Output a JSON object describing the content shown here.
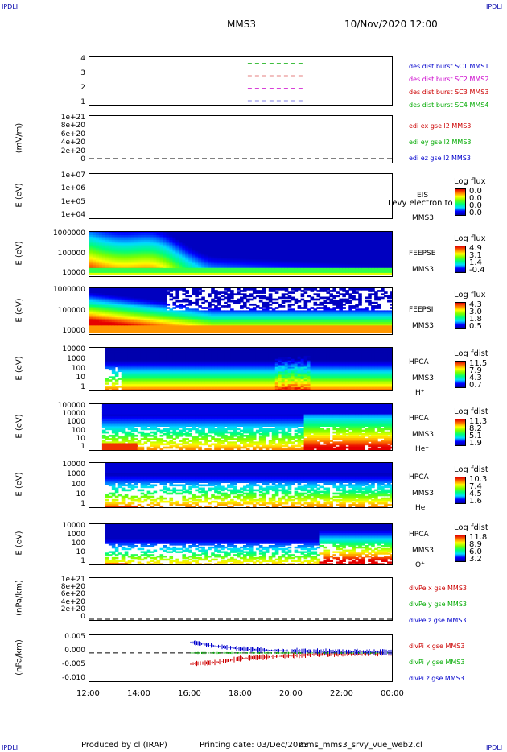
{
  "header": {
    "corner_tl": "IPDLI",
    "corner_tr": "IPDLI",
    "corner_bl": "IPDLI",
    "corner_br": "IPDLI",
    "spacecraft": "MMS3",
    "datetime": "10/Nov/2020 12:00"
  },
  "footer": {
    "produced": "Produced by cl (IRAP)",
    "printing": "Printing date: 03/Dec/2023",
    "file": "mms_mms3_srvy_vue_web2.cl"
  },
  "xaxis": {
    "ticks": [
      "12:00",
      "14:00",
      "16:00",
      "18:00",
      "20:00",
      "22:00",
      "00:00"
    ]
  },
  "panels": {
    "burst": {
      "yticks": [
        "4",
        "3",
        "2",
        "1"
      ],
      "legend": [
        {
          "text": "des dist burst SC1 MMS1",
          "color": "#0000cc"
        },
        {
          "text": "des dist burst SC2 MMS2",
          "color": "#cc00cc"
        },
        {
          "text": "des dist burst SC3 MMS3",
          "color": "#cc0000"
        },
        {
          "text": "des dist burst SC4 MMS4",
          "color": "#00aa00"
        }
      ]
    },
    "edi": {
      "ylabel": "(mV/m)",
      "yticks": [
        "1e+21",
        "8e+20",
        "6e+20",
        "4e+20",
        "2e+20",
        "0"
      ],
      "legend": [
        {
          "text": "edi ex gse l2 MMS3",
          "color": "#cc0000"
        },
        {
          "text": "edi ey gse l2 MMS3",
          "color": "#00aa00"
        },
        {
          "text": "edi ez gse l2 MMS3",
          "color": "#0000cc"
        }
      ]
    },
    "eis": {
      "ylabel": "E (eV)",
      "yticks": [
        "1e+07",
        "1e+06",
        "1e+05",
        "1e+04"
      ],
      "name": "EIS",
      "sc": "MMS3",
      "overlap": "Levy electron to",
      "cb_title": "Log flux",
      "cb_vals": [
        "0.0",
        "0.0",
        "0.0",
        "0.0"
      ]
    },
    "feepse": {
      "ylabel": "E (eV)",
      "yticks": [
        "1000000",
        "100000",
        "10000"
      ],
      "name": "FEEPSE",
      "sc": "MMS3",
      "cb_title": "Log flux",
      "cb_vals": [
        "4.9",
        "3.1",
        "1.4",
        "-0.4"
      ]
    },
    "feepsi": {
      "ylabel": "E (eV)",
      "yticks": [
        "1000000",
        "100000",
        "10000"
      ],
      "name": "FEEPSI",
      "sc": "MMS3",
      "cb_title": "Log flux",
      "cb_vals": [
        "4.3",
        "3.0",
        "1.8",
        "0.5"
      ]
    },
    "hpca_h": {
      "ylabel": "E (eV)",
      "yticks": [
        "10000",
        "1000",
        "100",
        "10",
        "1"
      ],
      "name": "HPCA",
      "sc": "MMS3",
      "species": "H⁺",
      "cb_title": "Log fdist",
      "cb_vals": [
        "11.5",
        "7.9",
        "4.3",
        "0.7"
      ]
    },
    "hpca_he": {
      "ylabel": "E (eV)",
      "yticks": [
        "100000",
        "10000",
        "1000",
        "100",
        "10",
        "1"
      ],
      "name": "HPCA",
      "sc": "MMS3",
      "species": "He⁺",
      "cb_title": "Log fdist",
      "cb_vals": [
        "11.3",
        "8.2",
        "5.1",
        "1.9"
      ]
    },
    "hpca_hepp": {
      "ylabel": "E (eV)",
      "yticks": [
        "10000",
        "1000",
        "100",
        "10",
        "1"
      ],
      "name": "HPCA",
      "sc": "MMS3",
      "species": "He⁺⁺",
      "cb_title": "Log fdist",
      "cb_vals": [
        "10.3",
        "7.4",
        "4.5",
        "1.6"
      ]
    },
    "hpca_o": {
      "ylabel": "E (eV)",
      "yticks": [
        "10000",
        "1000",
        "100",
        "10",
        "1"
      ],
      "name": "HPCA",
      "sc": "MMS3",
      "species": "O⁺",
      "cb_title": "Log fdist",
      "cb_vals": [
        "11.8",
        "8.9",
        "6.0",
        "3.2"
      ]
    },
    "divpe": {
      "ylabel": "(nPa/km)",
      "yticks": [
        "1e+21",
        "8e+20",
        "6e+20",
        "4e+20",
        "2e+20",
        "0"
      ],
      "legend": [
        {
          "text": "divPe x gse MMS3",
          "color": "#cc0000"
        },
        {
          "text": "divPe y gse MMS3",
          "color": "#00aa00"
        },
        {
          "text": "divPe z gse MMS3",
          "color": "#0000cc"
        }
      ]
    },
    "divpi": {
      "ylabel": "(nPa/km)",
      "yticks": [
        "0.005",
        "0.000",
        "-0.005",
        "-0.010"
      ],
      "legend": [
        {
          "text": "divPi x gse MMS3",
          "color": "#cc0000"
        },
        {
          "text": "divPi y gse MMS3",
          "color": "#00aa00"
        },
        {
          "text": "divPi z gse MMS3",
          "color": "#0000cc"
        }
      ]
    }
  },
  "chart_data": [
    {
      "type": "line",
      "panel": "burst",
      "x_range": [
        "12:00",
        "00:00"
      ],
      "ylim": [
        0.5,
        4.5
      ],
      "series": [
        {
          "name": "des dist burst SC1 MMS1",
          "y": 1,
          "intervals": [
            [
              "18:15",
              "20:20"
            ]
          ]
        },
        {
          "name": "des dist burst SC2 MMS2",
          "y": 2,
          "intervals": [
            [
              "18:15",
              "20:20"
            ]
          ]
        },
        {
          "name": "des dist burst SC3 MMS3",
          "y": 3,
          "intervals": [
            [
              "18:15",
              "20:20"
            ]
          ]
        },
        {
          "name": "des dist burst SC4 MMS4",
          "y": 4,
          "intervals": [
            [
              "18:15",
              "20:20"
            ]
          ]
        }
      ]
    },
    {
      "type": "heatmap",
      "panel": "feepse",
      "ylim": [
        10000,
        1000000
      ],
      "yscale": "log",
      "colorbar": [
        -0.4,
        4.9
      ]
    },
    {
      "type": "heatmap",
      "panel": "feepsi",
      "ylim": [
        10000,
        1000000
      ],
      "yscale": "log",
      "colorbar": [
        0.5,
        4.3
      ]
    },
    {
      "type": "heatmap",
      "panel": "hpca_h",
      "ylim": [
        1,
        10000
      ],
      "yscale": "log",
      "colorbar": [
        0.7,
        11.5
      ]
    },
    {
      "type": "heatmap",
      "panel": "hpca_he",
      "ylim": [
        1,
        100000
      ],
      "yscale": "log",
      "colorbar": [
        1.9,
        11.3
      ]
    },
    {
      "type": "heatmap",
      "panel": "hpca_hepp",
      "ylim": [
        1,
        10000
      ],
      "yscale": "log",
      "colorbar": [
        1.6,
        10.3
      ]
    },
    {
      "type": "heatmap",
      "panel": "hpca_o",
      "ylim": [
        1,
        10000
      ],
      "yscale": "log",
      "colorbar": [
        3.2,
        11.8
      ]
    },
    {
      "type": "line",
      "panel": "divpi",
      "ylim": [
        -0.011,
        0.0065
      ],
      "series": [
        {
          "name": "divPi x gse MMS3",
          "x": [
            "16:00",
            "17:00",
            "18:00",
            "19:00",
            "20:00",
            "21:00",
            "22:00",
            "23:00",
            "00:00"
          ],
          "y": [
            -0.004,
            -0.0035,
            -0.002,
            -0.0015,
            -0.001,
            -0.0005,
            -0.0003,
            -0.0002,
            -0.0001
          ]
        },
        {
          "name": "divPi y gse MMS3",
          "x": [
            "16:00",
            "17:00",
            "18:00",
            "19:00",
            "20:00",
            "21:00",
            "22:00",
            "23:00",
            "00:00"
          ],
          "y": [
            0.0,
            0.0,
            0.0,
            0.0,
            0.0,
            0.0,
            0.0,
            0.0,
            0.0
          ]
        },
        {
          "name": "divPi z gse MMS3",
          "x": [
            "16:00",
            "17:00",
            "18:00",
            "19:00",
            "20:00",
            "21:00",
            "22:00",
            "23:00",
            "00:00"
          ],
          "y": [
            0.004,
            0.0025,
            0.0015,
            0.001,
            0.0008,
            0.0006,
            0.0005,
            0.0004,
            0.0003
          ]
        }
      ]
    }
  ]
}
